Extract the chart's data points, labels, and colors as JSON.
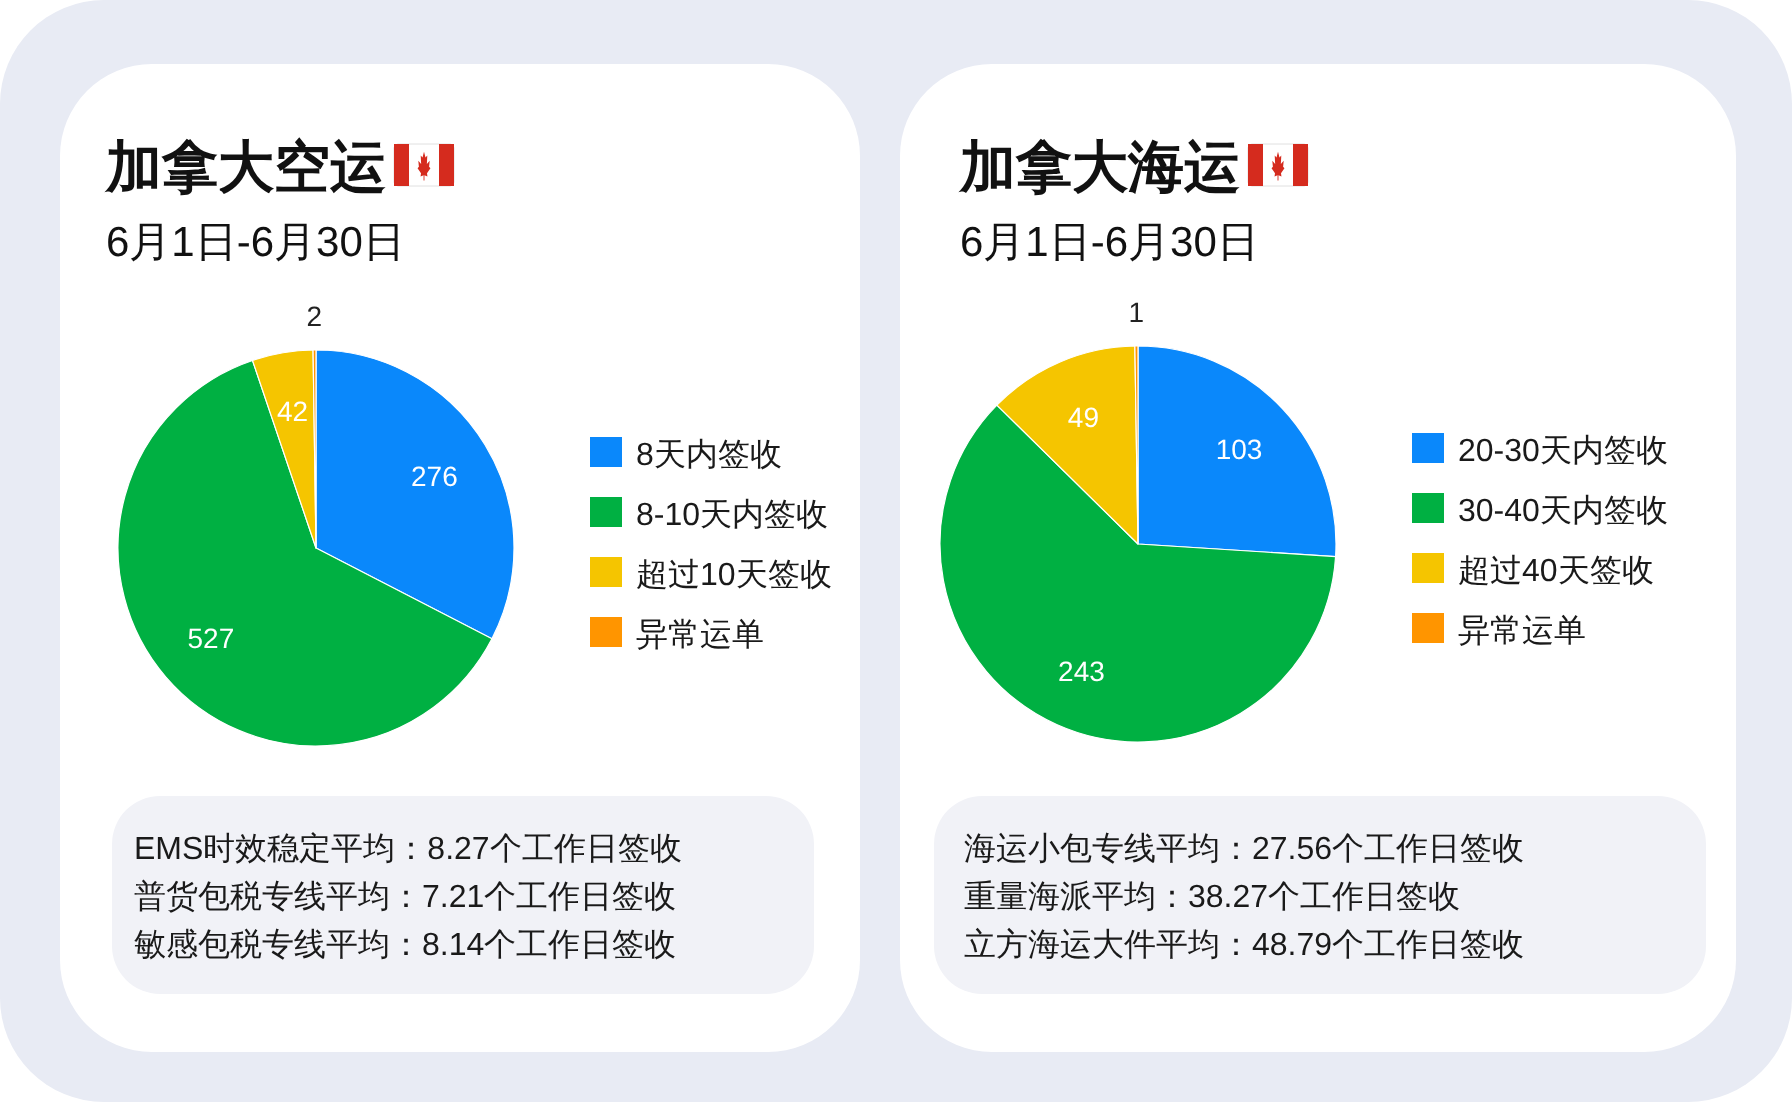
{
  "chart_data": [
    {
      "type": "pie",
      "title": "加拿大空运",
      "subtitle": "6月1日-6月30日",
      "categories": [
        "8天内签收",
        "8-10天内签收",
        "超过10天签收",
        "异常运单"
      ],
      "values": [
        276,
        527,
        42,
        2
      ],
      "colors": [
        "#0a88fb",
        "#00b042",
        "#f5c500",
        "#ff9500"
      ],
      "data_labels": true,
      "legend": "right",
      "annotations": [
        "EMS时效稳定平均：8.27个工作日签收",
        "普货包税专线平均：7.21个工作日签收",
        "敏感包税专线平均：8.14个工作日签收"
      ]
    },
    {
      "type": "pie",
      "title": "加拿大海运",
      "subtitle": "6月1日-6月30日",
      "categories": [
        "20-30天内签收",
        "30-40天内签收",
        "超过40天签收",
        "异常运单"
      ],
      "values": [
        103,
        243,
        49,
        1
      ],
      "colors": [
        "#0a88fb",
        "#00b042",
        "#f5c500",
        "#ff9500"
      ],
      "data_labels": true,
      "legend": "right",
      "annotations": [
        "海运小包专线平均：27.56个工作日签收",
        "重量海派平均：38.27个工作日签收",
        "立方海运大件平均：48.79个工作日签收"
      ]
    }
  ]
}
